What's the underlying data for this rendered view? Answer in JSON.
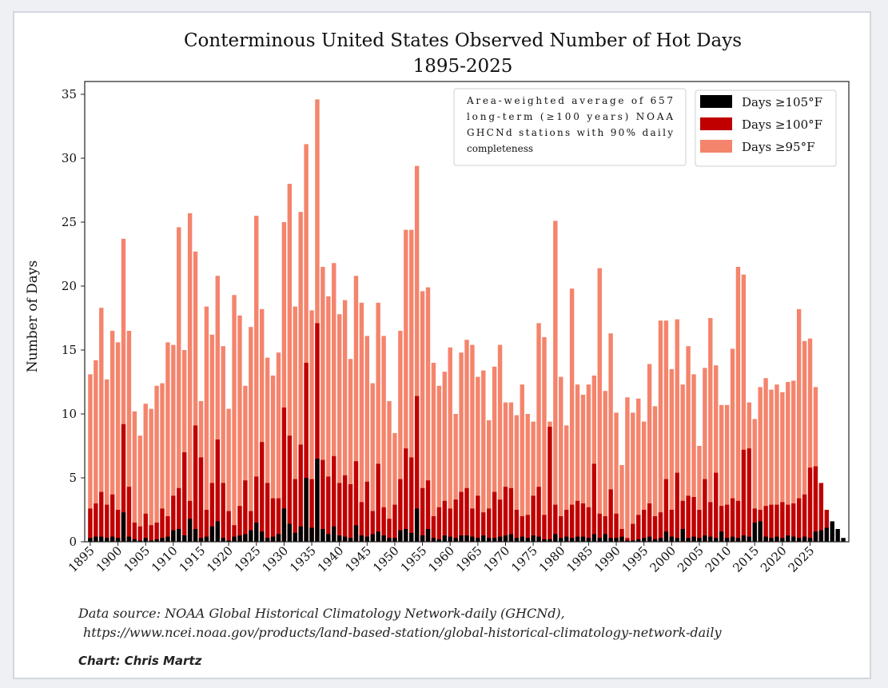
{
  "chart_data": {
    "type": "bar",
    "stacked_overlay": true,
    "title": "Conterminous United States Observed Number of Hot Days",
    "subtitle": "1895-2025",
    "ylabel": "Number of Days",
    "xlabel": "",
    "ylim": [
      0,
      36
    ],
    "yticks": [
      0,
      5,
      10,
      15,
      20,
      25,
      30,
      35
    ],
    "xticks": [
      1895,
      1900,
      1905,
      1910,
      1915,
      1920,
      1925,
      1930,
      1935,
      1940,
      1945,
      1950,
      1955,
      1960,
      1965,
      1970,
      1975,
      1980,
      1985,
      1990,
      1995,
      2000,
      2005,
      2010,
      2015,
      2020,
      2025
    ],
    "x_start": 1895,
    "legend_position": "top-right",
    "annotation": [
      "Area-weighted average of 657",
      "long-term (≥100 years) NOAA",
      "GHCNd stations with 90% daily",
      "completeness"
    ],
    "series": [
      {
        "name": "Days ≥105°F",
        "color": "#000000",
        "values": [
          0.3,
          0.4,
          0.4,
          0.3,
          0.4,
          0.3,
          2.3,
          0.4,
          0.2,
          0.1,
          0.3,
          0.1,
          0.2,
          0.3,
          0.4,
          0.9,
          1.0,
          0.5,
          1.8,
          1.0,
          0.3,
          0.4,
          1.2,
          1.6,
          0.3,
          0.1,
          0.4,
          0.5,
          0.6,
          0.9,
          1.5,
          0.8,
          0.3,
          0.4,
          0.6,
          2.6,
          1.4,
          0.7,
          1.2,
          5.0,
          1.1,
          6.5,
          1.0,
          0.6,
          1.2,
          0.5,
          0.4,
          0.3,
          1.3,
          0.5,
          0.4,
          0.6,
          0.8,
          0.5,
          0.3,
          0.3,
          0.9,
          1.0,
          0.7,
          2.6,
          0.5,
          1.0,
          0.3,
          0.2,
          0.5,
          0.4,
          0.3,
          0.5,
          0.5,
          0.4,
          0.3,
          0.5,
          0.3,
          0.3,
          0.4,
          0.5,
          0.6,
          0.3,
          0.4,
          0.3,
          0.5,
          0.4,
          0.2,
          0.2,
          0.6,
          0.3,
          0.4,
          0.3,
          0.4,
          0.4,
          0.3,
          0.6,
          0.3,
          0.6,
          0.3,
          0.3,
          0.4,
          0.1,
          0.1,
          0.2,
          0.3,
          0.4,
          0.2,
          0.3,
          0.8,
          0.4,
          0.3,
          1.0,
          0.3,
          0.4,
          0.3,
          0.5,
          0.4,
          0.3,
          0.8,
          0.3,
          0.4,
          0.3,
          0.5,
          0.4,
          1.5,
          1.6,
          0.4,
          0.3,
          0.4,
          0.3,
          0.5,
          0.4,
          0.3,
          0.4,
          0.3,
          0.8,
          0.9,
          1.1,
          1.6,
          1.0,
          0.3
        ]
      },
      {
        "name": "Days ≥100°F",
        "color": "#c00000",
        "values": [
          2.6,
          3.0,
          3.9,
          2.9,
          3.7,
          2.5,
          9.2,
          4.3,
          1.5,
          1.2,
          2.2,
          1.3,
          1.5,
          2.6,
          2.0,
          3.6,
          4.2,
          7.0,
          3.2,
          9.1,
          6.6,
          2.5,
          4.6,
          8.0,
          4.6,
          2.4,
          1.3,
          2.8,
          4.8,
          2.4,
          5.1,
          7.8,
          4.6,
          3.4,
          3.4,
          10.5,
          8.3,
          4.9,
          7.6,
          14.0,
          4.9,
          17.1,
          6.4,
          5.1,
          6.7,
          4.6,
          5.2,
          4.5,
          6.3,
          3.1,
          4.7,
          2.4,
          6.1,
          2.7,
          1.8,
          2.9,
          4.9,
          7.3,
          6.6,
          11.4,
          4.2,
          4.8,
          2.0,
          2.7,
          3.2,
          2.6,
          3.3,
          3.9,
          4.2,
          2.6,
          3.6,
          2.3,
          2.6,
          3.9,
          3.3,
          4.3,
          4.2,
          2.5,
          2.0,
          2.1,
          3.6,
          4.3,
          2.1,
          9.0,
          2.9,
          2.0,
          2.5,
          2.9,
          3.2,
          3.0,
          2.7,
          6.1,
          2.2,
          2.0,
          4.1,
          2.2,
          1.0,
          0.3,
          1.4,
          2.1,
          2.5,
          3.0,
          2.0,
          2.3,
          4.9,
          2.5,
          5.4,
          3.2,
          3.6,
          3.5,
          2.5,
          4.9,
          3.1,
          5.4,
          2.8,
          2.9,
          3.4,
          3.2,
          7.2,
          7.3,
          2.6,
          2.5,
          2.8,
          2.9,
          2.9,
          3.1,
          2.9,
          3.0,
          3.4,
          3.7,
          5.8,
          5.9,
          4.6,
          2.5
        ]
      },
      {
        "name": "Days ≥95°F",
        "color": "#f4846c",
        "values": [
          13.1,
          14.2,
          18.3,
          12.7,
          16.5,
          15.6,
          23.7,
          16.5,
          10.2,
          8.3,
          10.8,
          10.4,
          12.2,
          12.4,
          15.6,
          15.4,
          24.6,
          15.0,
          25.7,
          22.7,
          11.0,
          18.4,
          16.2,
          20.8,
          15.3,
          10.4,
          19.3,
          17.7,
          12.2,
          16.8,
          25.5,
          18.2,
          14.4,
          13.0,
          14.8,
          25.0,
          28.0,
          18.4,
          25.8,
          31.1,
          18.1,
          34.6,
          21.5,
          19.2,
          21.8,
          17.8,
          18.9,
          14.3,
          20.8,
          18.7,
          16.1,
          12.4,
          18.7,
          16.1,
          11.0,
          8.5,
          16.5,
          24.4,
          24.4,
          29.4,
          19.6,
          19.9,
          14.0,
          12.2,
          13.3,
          15.2,
          10.0,
          14.8,
          15.8,
          15.4,
          12.9,
          13.4,
          9.5,
          13.7,
          15.4,
          10.9,
          10.9,
          9.9,
          12.3,
          10.0,
          9.4,
          17.1,
          16.0,
          9.4,
          25.1,
          12.9,
          9.1,
          19.8,
          12.3,
          11.5,
          12.3,
          13.0,
          21.4,
          11.8,
          16.3,
          10.1,
          6.0,
          11.3,
          10.1,
          11.2,
          9.4,
          13.9,
          10.6,
          17.3,
          17.3,
          13.5,
          17.4,
          12.3,
          15.3,
          13.1,
          7.5,
          13.6,
          17.5,
          13.8,
          10.7,
          10.7,
          15.1,
          21.5,
          20.9,
          10.9,
          9.6,
          12.1,
          12.8,
          11.9,
          12.3,
          11.7,
          12.5,
          12.6,
          18.2,
          15.7,
          15.9,
          12.1
        ]
      }
    ]
  },
  "footer": {
    "source_line1": "Data source: NOAA Global Historical Climatology Network-daily (GHCNd),",
    "source_line2": "https://www.ncei.noaa.gov/products/land-based-station/global-historical-climatology-network-daily",
    "credit": "Chart: Chris Martz"
  }
}
